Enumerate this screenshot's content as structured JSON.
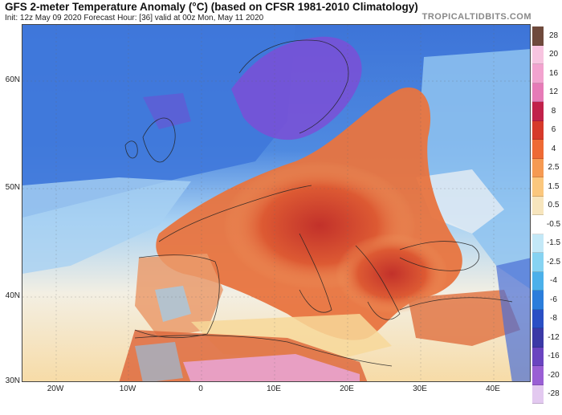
{
  "header": {
    "title": "GFS 2-meter Temperature Anomaly (°C) (based on CFSR 1981-2010 Climatology)",
    "subtitle": "Init: 12z May 09 2020   Forecast Hour: [36]   valid at 00z Mon, May 11 2020",
    "brand": "TROPICALTIDBITS.COM"
  },
  "map": {
    "latitude_labels": [
      "60N",
      "50N",
      "40N",
      "30N"
    ],
    "longitude_labels": [
      "20W",
      "10W",
      "0",
      "10E",
      "20E",
      "30E",
      "40E"
    ],
    "colors": {
      "ocean_north_cold": "#3d74d8",
      "deep_cold": "#7b4fd6",
      "light_cold": "#8fc3f0",
      "neutral": "#f3f3f3",
      "mild_warm": "#f7d89a",
      "warm": "#e8743f",
      "hot": "#cc3a25",
      "very_hot": "#9c1f2e",
      "extreme_hot": "#e9a3cf",
      "border_line": "#222222"
    }
  },
  "colorbar": {
    "labels": [
      "28",
      "20",
      "16",
      "12",
      "8",
      "6",
      "4",
      "2.5",
      "1.5",
      "0.5",
      "-0.5",
      "-1.5",
      "-2.5",
      "-4",
      "-6",
      "-8",
      "-12",
      "-16",
      "-20",
      "-28"
    ],
    "colors": [
      "#6f4a3c",
      "#f7c4e0",
      "#f2a3cf",
      "#e67bb7",
      "#c1214a",
      "#d63a2b",
      "#ee6a34",
      "#f69a52",
      "#fbc77d",
      "#f7e5bd",
      "#ffffff",
      "#c3e8f7",
      "#86d3f2",
      "#4bb0ea",
      "#2b7ddb",
      "#2a4fc4",
      "#3b39a6",
      "#6a44c0",
      "#9a5fd4",
      "#e3c9f0"
    ]
  }
}
